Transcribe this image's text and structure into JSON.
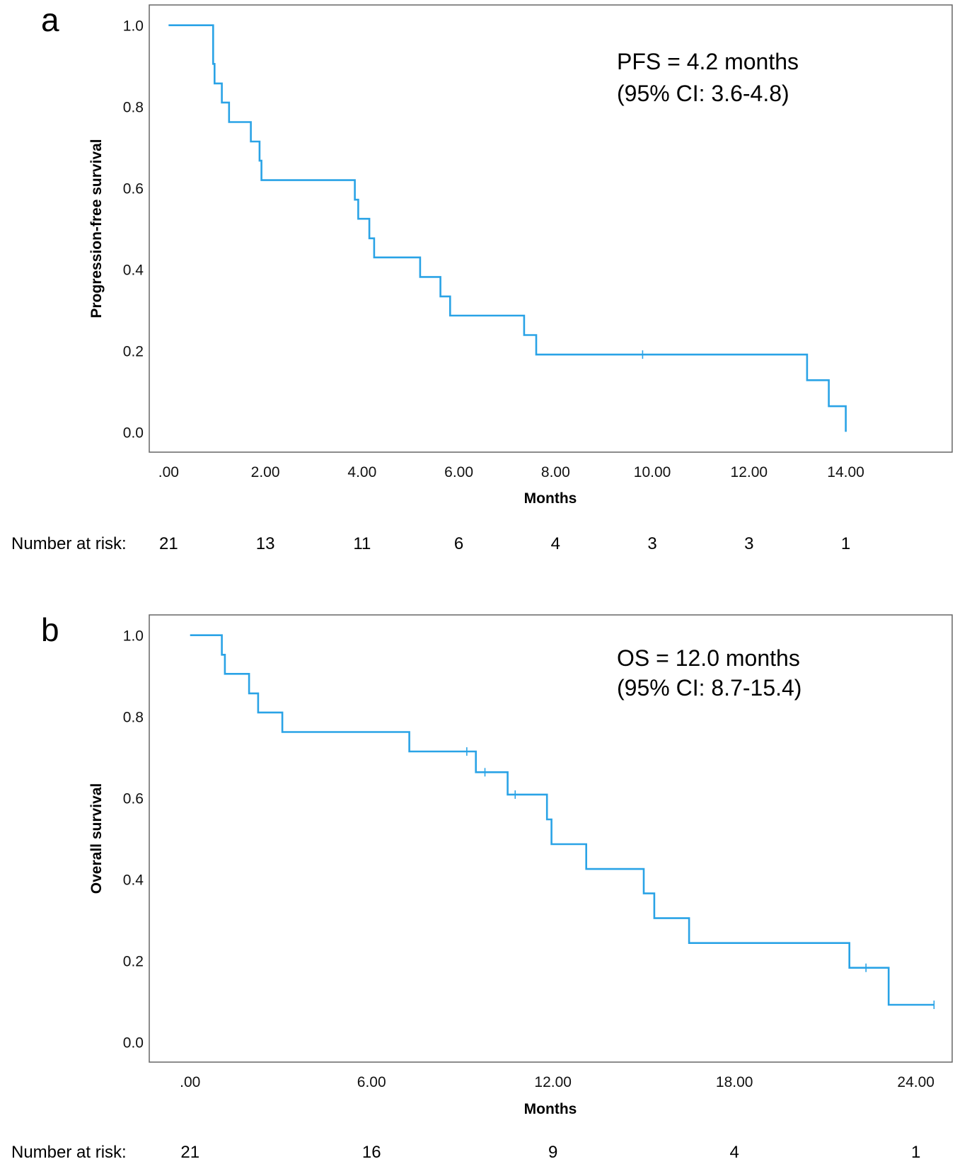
{
  "chart_data": [
    {
      "panel_label": "a",
      "type": "line",
      "step": true,
      "xlabel": "Months",
      "ylabel": "Progression-free survival",
      "xlim": [
        -0.4,
        16.2
      ],
      "ylim": [
        -0.05,
        1.05
      ],
      "x_ticks": [
        0,
        2,
        4,
        6,
        8,
        10,
        12,
        14
      ],
      "x_tick_labels": [
        ".00",
        "2.00",
        "4.00",
        "6.00",
        "8.00",
        "10.00",
        "12.00",
        "14.00"
      ],
      "y_ticks": [
        0,
        0.2,
        0.4,
        0.6,
        0.8,
        1.0
      ],
      "y_tick_labels": [
        "0.0",
        "0.2",
        "0.4",
        "0.6",
        "0.8",
        "1.0"
      ],
      "series_color": "#2aa3e6",
      "series": [
        {
          "x": [
            0,
            0.92,
            0.95,
            1.0,
            1.1,
            1.25,
            1.7,
            1.88,
            1.92,
            3.85,
            3.92,
            4.15,
            4.25,
            5.2,
            5.62,
            5.82,
            7.35,
            7.6,
            13.2,
            13.65,
            14.0
          ],
          "y": [
            1.0,
            0.905,
            0.857,
            0.857,
            0.81,
            0.762,
            0.714,
            0.667,
            0.619,
            0.571,
            0.524,
            0.476,
            0.429,
            0.381,
            0.333,
            0.286,
            0.238,
            0.19,
            0.127,
            0.063,
            0.0
          ]
        }
      ],
      "censored": [
        {
          "x": 9.8,
          "y": 0.19
        }
      ],
      "annotation": [
        "PFS = 4.2 months",
        "(95% CI: 3.6-4.8)"
      ],
      "risk_label": "Number at risk:",
      "risk_counts": [
        "21",
        "13",
        "11",
        "6",
        "4",
        "3",
        "3",
        "1"
      ]
    },
    {
      "panel_label": "b",
      "type": "line",
      "step": true,
      "xlabel": "Months",
      "ylabel": "Overall survival",
      "xlim": [
        -1.35,
        25.2
      ],
      "ylim": [
        -0.05,
        1.05
      ],
      "x_ticks": [
        0,
        6,
        12,
        18,
        24
      ],
      "x_tick_labels": [
        ".00",
        "6.00",
        "12.00",
        "18.00",
        "24.00"
      ],
      "y_ticks": [
        0,
        0.2,
        0.4,
        0.6,
        0.8,
        1.0
      ],
      "y_tick_labels": [
        "0.0",
        "0.2",
        "0.4",
        "0.6",
        "0.8",
        "1.0"
      ],
      "series_color": "#2aa3e6",
      "series": [
        {
          "x": [
            0,
            1.05,
            1.15,
            1.95,
            2.25,
            3.05,
            7.25,
            9.45,
            10.5,
            11.8,
            11.95,
            13.1,
            15.0,
            15.35,
            16.5,
            21.8,
            23.1,
            24.6
          ],
          "y": [
            1.0,
            0.952,
            0.905,
            0.857,
            0.81,
            0.762,
            0.714,
            0.663,
            0.608,
            0.547,
            0.486,
            0.425,
            0.365,
            0.304,
            0.243,
            0.182,
            0.091,
            0.091
          ]
        }
      ],
      "censored": [
        {
          "x": 9.15,
          "y": 0.714
        },
        {
          "x": 9.75,
          "y": 0.663
        },
        {
          "x": 10.75,
          "y": 0.608
        },
        {
          "x": 22.35,
          "y": 0.182
        },
        {
          "x": 24.6,
          "y": 0.091
        }
      ],
      "annotation": [
        "OS = 12.0 months",
        "(95% CI: 8.7-15.4)"
      ],
      "risk_label": "Number at risk:",
      "risk_counts": [
        "21",
        "16",
        "9",
        "4",
        "1"
      ]
    }
  ]
}
